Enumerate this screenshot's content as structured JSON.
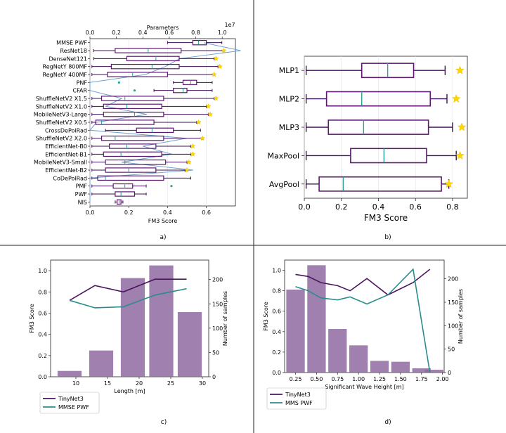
{
  "colors": {
    "box": "#5b1a6e",
    "median": "#2aa198",
    "whisker": "#3d0f57",
    "param_line": "#6fa0d0",
    "param_marker": "#2aa198",
    "star": "#ffd700",
    "bar": "#8e6aa0",
    "tinynet": "#4b1660",
    "mmse": "#2a8d8a"
  },
  "chart_data": [
    {
      "id": "a",
      "panel_label": "a)",
      "type": "boxplot",
      "orientation": "horizontal",
      "xlabel": "FM3 Score",
      "xlim": [
        0.0,
        0.75
      ],
      "xticks": [
        "0.0",
        "0.2",
        "0.4",
        "0.6"
      ],
      "xtick_values": [
        0.0,
        0.2,
        0.4,
        0.6
      ],
      "secondary_x": {
        "label": "Parameters",
        "exponent": "1e7",
        "lim": [
          0,
          1.1
        ],
        "ticks": [
          "0.0",
          "0.2",
          "0.4",
          "0.6",
          "0.8",
          "1.0"
        ],
        "tick_values": [
          0,
          0.2,
          0.4,
          0.6,
          0.8,
          1.0
        ]
      },
      "categories": [
        "MMSE PWF",
        "ResNet18",
        "DenseNet121",
        "RegNetY 800MF",
        "RegNetY 400MF",
        "PNF",
        "CFAR",
        "ShuffleNetV2 X1.5",
        "ShuffleNetV2 X1.0",
        "MobileNetV3-Large",
        "ShuffleNetV2 X0.5",
        "CrossDePolRad",
        "ShuffleNetV2 X2.0",
        "EfficientNet-B0",
        "EfficientNet-B1",
        "MobileNetV3-Small",
        "EfficientNet-B2",
        "CoDePolRad",
        "PMF",
        "PWF",
        "NIS"
      ],
      "boxes": [
        {
          "min": 0.4,
          "q1": 0.53,
          "median": 0.56,
          "q3": 0.6,
          "max": 0.68,
          "star": null
        },
        {
          "min": 0.02,
          "q1": 0.13,
          "median": 0.3,
          "q3": 0.47,
          "max": 0.69,
          "star": 0.69
        },
        {
          "min": 0.02,
          "q1": 0.19,
          "median": 0.34,
          "q3": 0.46,
          "max": 0.64,
          "star": 0.65
        },
        {
          "min": 0.01,
          "q1": 0.11,
          "median": 0.32,
          "q3": 0.46,
          "max": 0.66,
          "star": 0.67
        },
        {
          "min": 0.01,
          "q1": 0.09,
          "median": 0.22,
          "q3": 0.4,
          "max": 0.64,
          "star": 0.64
        },
        {
          "min": 0.43,
          "q1": 0.48,
          "median": 0.52,
          "q3": 0.55,
          "max": 0.63,
          "star": null,
          "outlier": 0.15
        },
        {
          "min": 0.33,
          "q1": 0.43,
          "median": 0.48,
          "q3": 0.5,
          "max": 0.63,
          "star": null,
          "outlier": 0.23
        },
        {
          "min": 0.01,
          "q1": 0.06,
          "median": 0.18,
          "q3": 0.38,
          "max": 0.64,
          "star": 0.65
        },
        {
          "min": 0.01,
          "q1": 0.07,
          "median": 0.19,
          "q3": 0.37,
          "max": 0.6,
          "star": 0.61
        },
        {
          "min": 0.01,
          "q1": 0.07,
          "median": 0.23,
          "q3": 0.38,
          "max": 0.61,
          "star": 0.62
        },
        {
          "min": 0.01,
          "q1": 0.03,
          "median": 0.06,
          "q3": 0.33,
          "max": 0.55,
          "star": 0.56
        },
        {
          "min": 0.08,
          "q1": 0.24,
          "median": 0.32,
          "q3": 0.43,
          "max": 0.57,
          "star": null
        },
        {
          "min": 0.01,
          "q1": 0.06,
          "median": 0.13,
          "q3": 0.38,
          "max": 0.58,
          "star": 0.58
        },
        {
          "min": 0.01,
          "q1": 0.1,
          "median": 0.19,
          "q3": 0.34,
          "max": 0.52,
          "star": 0.53
        },
        {
          "min": 0.01,
          "q1": 0.07,
          "median": 0.16,
          "q3": 0.37,
          "max": 0.52,
          "star": 0.53
        },
        {
          "min": 0.01,
          "q1": 0.08,
          "median": 0.18,
          "q3": 0.39,
          "max": 0.5,
          "star": 0.51
        },
        {
          "min": 0.01,
          "q1": 0.08,
          "median": 0.2,
          "q3": 0.34,
          "max": 0.49,
          "star": 0.5
        },
        {
          "min": 0.01,
          "q1": 0.04,
          "median": 0.08,
          "q3": 0.38,
          "max": 0.52,
          "star": null
        },
        {
          "min": 0.01,
          "q1": 0.12,
          "median": 0.18,
          "q3": 0.22,
          "max": 0.29,
          "star": null,
          "outlier": 0.42
        },
        {
          "min": 0.01,
          "q1": 0.13,
          "median": 0.16,
          "q3": 0.23,
          "max": 0.29,
          "star": null
        },
        {
          "min": 0.13,
          "q1": 0.14,
          "median": 0.15,
          "q3": 0.16,
          "max": 0.17,
          "star": null
        }
      ],
      "parameters": [
        0.86,
        1.14,
        0.68,
        0.57,
        0.42,
        0.0,
        0.0,
        0.24,
        0.12,
        0.43,
        0.05,
        0.0,
        0.73,
        0.4,
        0.62,
        0.24,
        0.78,
        0.0,
        0.0,
        0.0,
        0.0
      ]
    },
    {
      "id": "b",
      "panel_label": "b)",
      "type": "boxplot",
      "orientation": "horizontal",
      "xlabel": "FM3 Score",
      "xlim": [
        0.0,
        0.88
      ],
      "xticks": [
        "0.0",
        "0.2",
        "0.4",
        "0.6",
        "0.8"
      ],
      "xtick_values": [
        0.0,
        0.2,
        0.4,
        0.6,
        0.8
      ],
      "categories": [
        "MLP1",
        "MLP2",
        "MLP3",
        "MaxPool",
        "AvgPool"
      ],
      "boxes": [
        {
          "min": 0.01,
          "q1": 0.31,
          "median": 0.45,
          "q3": 0.59,
          "max": 0.76,
          "star": 0.84
        },
        {
          "min": 0.01,
          "q1": 0.12,
          "median": 0.31,
          "q3": 0.68,
          "max": 0.77,
          "star": 0.82
        },
        {
          "min": 0.01,
          "q1": 0.13,
          "median": 0.32,
          "q3": 0.67,
          "max": 0.8,
          "star": 0.85
        },
        {
          "min": 0.01,
          "q1": 0.25,
          "median": 0.43,
          "q3": 0.66,
          "max": 0.82,
          "star": 0.84
        },
        {
          "min": 0.01,
          "q1": 0.08,
          "median": 0.21,
          "q3": 0.74,
          "max": 0.78,
          "star": 0.78
        }
      ]
    },
    {
      "id": "c",
      "panel_label": "c)",
      "type": "bar+line",
      "xlabel": "Length [m]",
      "ylabel": "FM3 Score",
      "y2label": "Number of samples",
      "xlim": [
        6,
        31
      ],
      "ylim": [
        0.0,
        1.1
      ],
      "y2lim": [
        0,
        240
      ],
      "xticks": [
        "10",
        "15",
        "20",
        "25",
        "30"
      ],
      "xtick_values": [
        10,
        15,
        20,
        25,
        30
      ],
      "yticks": [
        "0.0",
        "0.2",
        "0.4",
        "0.6",
        "0.8",
        "1.0"
      ],
      "ytick_values": [
        0.0,
        0.2,
        0.4,
        0.6,
        0.8,
        1.0
      ],
      "y2ticks": [
        "0",
        "50",
        "100",
        "150",
        "200"
      ],
      "y2tick_values": [
        0,
        50,
        100,
        150,
        200
      ],
      "bars": {
        "x": [
          9,
          14,
          19,
          23.5,
          28
        ],
        "values": [
          12,
          54,
          203,
          229,
          133
        ],
        "width": 3.8
      },
      "series": [
        {
          "name": "TinyNet3",
          "x": [
            9,
            13,
            17.5,
            22.5,
            27.5
          ],
          "values": [
            0.72,
            0.86,
            0.8,
            0.92,
            0.92
          ]
        },
        {
          "name": "MMSE PWF",
          "x": [
            9,
            13,
            17.5,
            22.5,
            27.5
          ],
          "values": [
            0.72,
            0.65,
            0.66,
            0.77,
            0.83
          ]
        }
      ],
      "legend": "lower-left-outside"
    },
    {
      "id": "d",
      "panel_label": "d)",
      "type": "bar+line",
      "xlabel": "Significant Wave Height [m]",
      "ylabel": "FM3 Score",
      "y2label": "Number of samples",
      "xlim": [
        0.12,
        2.02
      ],
      "ylim": [
        0.0,
        1.1
      ],
      "y2lim": [
        0,
        240
      ],
      "xticks": [
        "0.25",
        "0.50",
        "0.75",
        "1.00",
        "1.25",
        "1.50",
        "1.75",
        "2.00"
      ],
      "xtick_values": [
        0.25,
        0.5,
        0.75,
        1.0,
        1.25,
        1.5,
        1.75,
        2.0
      ],
      "yticks": [
        "0.0",
        "0.2",
        "0.4",
        "0.6",
        "0.8",
        "1.0"
      ],
      "ytick_values": [
        0.0,
        0.2,
        0.4,
        0.6,
        0.8,
        1.0
      ],
      "y2ticks": [
        "0",
        "50",
        "100",
        "150",
        "200"
      ],
      "y2tick_values": [
        0,
        50,
        100,
        150,
        200
      ],
      "bars": {
        "x": [
          0.25,
          0.5,
          0.75,
          1.0,
          1.25,
          1.5,
          1.75,
          1.9
        ],
        "values": [
          177,
          229,
          93,
          58,
          25,
          23,
          9,
          6
        ],
        "width": 0.22
      },
      "series": [
        {
          "name": "TinyNet3",
          "x": [
            0.25,
            0.4,
            0.55,
            0.75,
            0.9,
            1.1,
            1.35,
            1.65,
            1.85
          ],
          "values": [
            0.96,
            0.94,
            0.88,
            0.85,
            0.8,
            0.92,
            0.76,
            0.88,
            1.01
          ]
        },
        {
          "name": "MMS PWF",
          "x": [
            0.25,
            0.4,
            0.55,
            0.75,
            0.9,
            1.1,
            1.35,
            1.65,
            1.85
          ],
          "values": [
            0.84,
            0.8,
            0.73,
            0.71,
            0.74,
            0.67,
            0.76,
            1.01,
            0.0
          ]
        }
      ],
      "legend": "lower-left-outside"
    }
  ]
}
